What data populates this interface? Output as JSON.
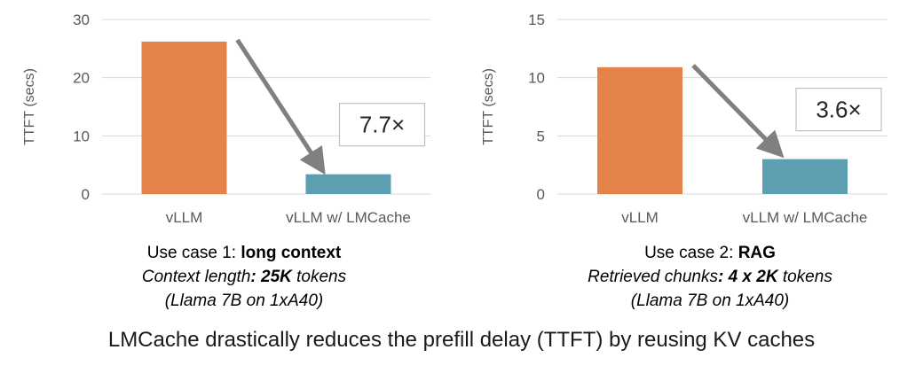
{
  "chart_data": [
    {
      "type": "bar",
      "categories": [
        "vLLM",
        "vLLM w/ LMCache"
      ],
      "values": [
        26.2,
        3.4
      ],
      "ylabel": "TTFT (secs)",
      "ylim": [
        0,
        30
      ],
      "yticks": [
        0,
        10,
        20,
        30
      ],
      "grid": true,
      "colors": [
        "#E3834A",
        "#5B9FB0"
      ],
      "annotation": "7.7×",
      "caption": {
        "line1_prefix": "Use case 1: ",
        "line1_bold": "long context",
        "line2_prefix": "Context length",
        "line2_bold": ": 25K",
        "line2_suffix": " tokens",
        "line3": "(Llama 7B on 1xA40)"
      }
    },
    {
      "type": "bar",
      "categories": [
        "vLLM",
        "vLLM w/ LMCache"
      ],
      "values": [
        10.9,
        3.0
      ],
      "ylabel": "TTFT (secs)",
      "ylim": [
        0,
        15
      ],
      "yticks": [
        0,
        5,
        10,
        15
      ],
      "grid": true,
      "colors": [
        "#E3834A",
        "#5B9FB0"
      ],
      "annotation": "3.6×",
      "caption": {
        "line1_prefix": "Use case 2: ",
        "line1_bold": "RAG",
        "line2_prefix": "Retrieved chunks",
        "line2_bold": ": 4 x 2K",
        "line2_suffix": " tokens",
        "line3": "(Llama 7B on 1xA40)"
      }
    }
  ],
  "footer": "LMCache drastically reduces the prefill delay (TTFT) by reusing KV caches",
  "colors": {
    "grid": "#D9D9D9",
    "arrow": "#808080",
    "text": "#595959"
  }
}
